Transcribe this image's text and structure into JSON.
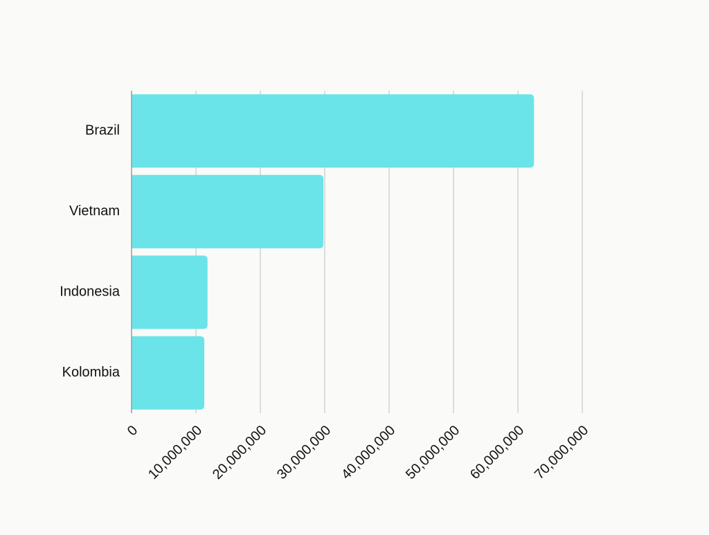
{
  "chart_data": {
    "type": "bar",
    "orientation": "horizontal",
    "title": "",
    "xlabel": "",
    "ylabel": "",
    "categories": [
      "Brazil",
      "Vietnam",
      "Indonesia",
      "Kolombia"
    ],
    "values": [
      62500000,
      29800000,
      11800000,
      11300000
    ],
    "xlim": [
      0,
      70000000
    ],
    "ticks": [
      0,
      10000000,
      20000000,
      30000000,
      40000000,
      50000000,
      60000000,
      70000000
    ],
    "tick_labels": [
      "0",
      "10,000,000",
      "20,000,000",
      "30,000,000",
      "40,000,000",
      "50,000,000",
      "60,000,000",
      "70,000,000"
    ],
    "grid": true,
    "legend": "none",
    "colors": {
      "bar": "#6ae4e8",
      "grid": "#c8c8c8",
      "axis": "#9a9a9a",
      "text": "#111111",
      "background": "#fafaf9"
    }
  }
}
